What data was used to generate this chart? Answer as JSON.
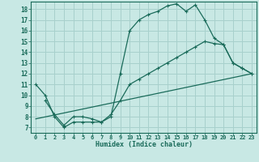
{
  "xlabel": "Humidex (Indice chaleur)",
  "xlim": [
    -0.5,
    23.5
  ],
  "ylim": [
    6.5,
    18.7
  ],
  "yticks": [
    7,
    8,
    9,
    10,
    11,
    12,
    13,
    14,
    15,
    16,
    17,
    18
  ],
  "xticks": [
    0,
    1,
    2,
    3,
    4,
    5,
    6,
    7,
    8,
    9,
    10,
    11,
    12,
    13,
    14,
    15,
    16,
    17,
    18,
    19,
    20,
    21,
    22,
    23
  ],
  "background_color": "#c8e8e4",
  "grid_color": "#a8d0cc",
  "line_color": "#1a6b5a",
  "line1_x": [
    0,
    1,
    2,
    3,
    4,
    5,
    6,
    7,
    8,
    9,
    10,
    11,
    12,
    13,
    14,
    15,
    16,
    17,
    18,
    19,
    20,
    21,
    22,
    23
  ],
  "line1_y": [
    11,
    10,
    8,
    7,
    7.5,
    7.5,
    7.5,
    7.5,
    8,
    12,
    16,
    17,
    17.5,
    17.8,
    18.3,
    18.5,
    17.8,
    18.4,
    17,
    15.3,
    14.7,
    13,
    12.5,
    12
  ],
  "line2_x": [
    1,
    2,
    3,
    4,
    5,
    6,
    7,
    8,
    9,
    10,
    11,
    12,
    13,
    14,
    15,
    16,
    17,
    18,
    19,
    20,
    21,
    22,
    23
  ],
  "line2_y": [
    9.5,
    8.2,
    7.2,
    8.0,
    8.0,
    7.8,
    7.5,
    8.2,
    9.5,
    11.0,
    11.5,
    12.0,
    12.5,
    13.0,
    13.5,
    14.0,
    14.5,
    15.0,
    14.8,
    14.7,
    13.0,
    12.5,
    12.0
  ],
  "line3_x": [
    0,
    23
  ],
  "line3_y": [
    7.8,
    12.0
  ]
}
